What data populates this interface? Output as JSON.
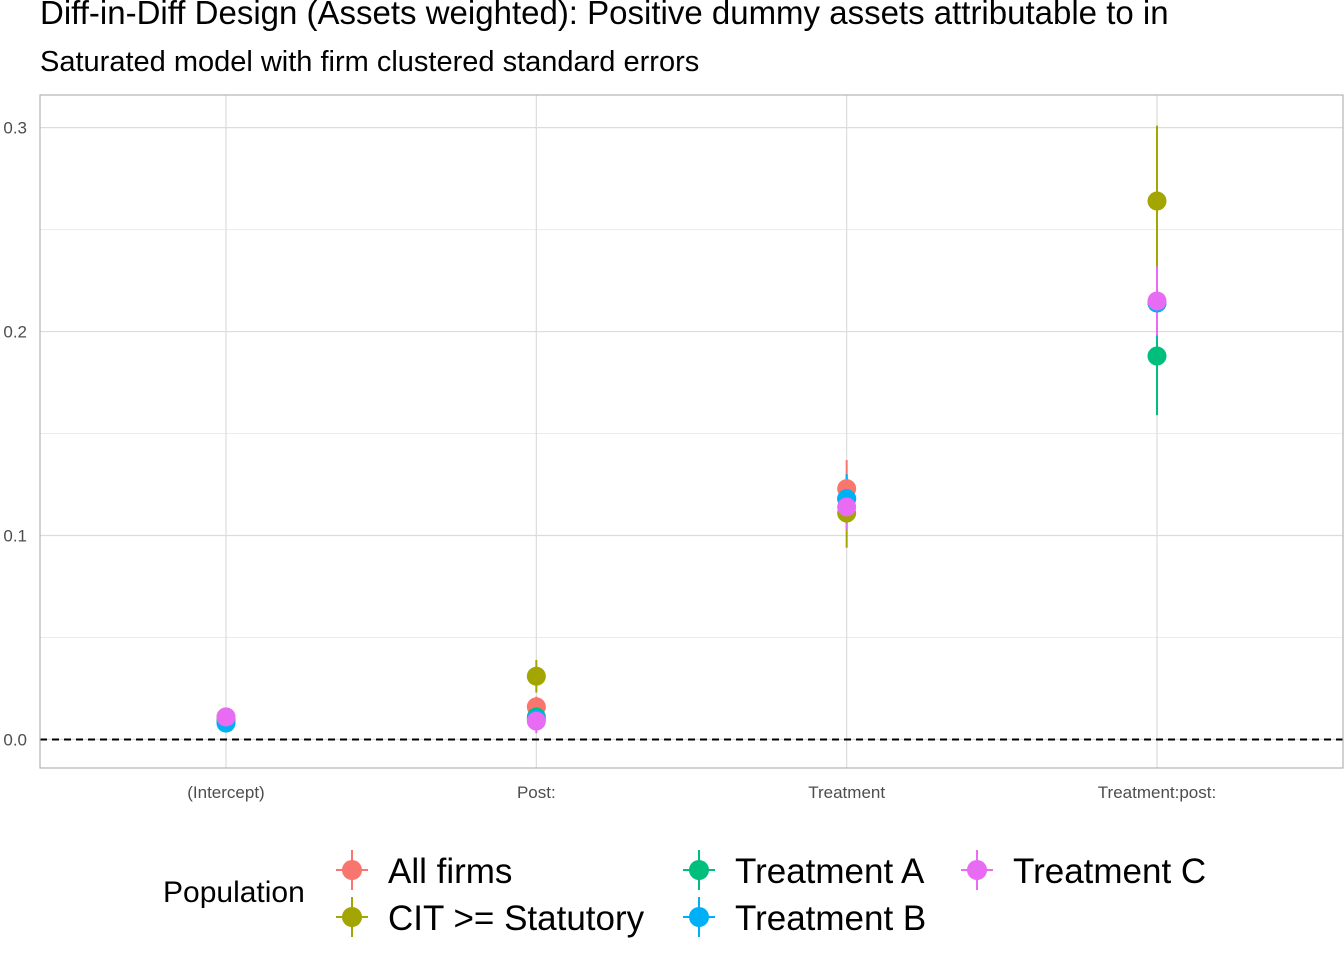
{
  "title": "Diff-in-Diff Design (Assets weighted): Positive dummy assets attributable to in",
  "subtitle": "Saturated model with firm clustered standard errors",
  "colors": {
    "All firms": "#F8766D",
    "CIT >= Statutory": "#A3A500",
    "Treatment A": "#00BF7D",
    "Treatment B": "#00B0F6",
    "Treatment C": "#E76BF3"
  },
  "legend": {
    "title": "Population",
    "items": [
      "All firms",
      "CIT >= Statutory",
      "Treatment A",
      "Treatment B",
      "Treatment C"
    ]
  },
  "chart_data": {
    "type": "scatter",
    "categories": [
      "(Intercept)",
      "Post:",
      "Treatment",
      "Treatment:post:"
    ],
    "y_ticks": [
      "0.0",
      "0.1",
      "0.2",
      "0.3"
    ],
    "ylim": [
      -0.014,
      0.316
    ],
    "reference_line": 0,
    "grid": true,
    "legend_position": "bottom",
    "series": [
      {
        "name": "All firms",
        "estimates": [
          0.011,
          0.016,
          0.123,
          0.214
        ],
        "ci_low": [
          0.009,
          0.012,
          0.109,
          0.195
        ],
        "ci_high": [
          0.013,
          0.021,
          0.137,
          0.233
        ]
      },
      {
        "name": "CIT >= Statutory",
        "estimates": [
          0.01,
          0.031,
          0.111,
          0.264
        ],
        "ci_low": [
          0.008,
          0.023,
          0.094,
          0.226
        ],
        "ci_high": [
          0.012,
          0.039,
          0.128,
          0.301
        ]
      },
      {
        "name": "Treatment A",
        "estimates": [
          0.009,
          0.011,
          0.118,
          0.188
        ],
        "ci_low": [
          0.007,
          0.005,
          0.106,
          0.159
        ],
        "ci_high": [
          0.011,
          0.017,
          0.13,
          0.217
        ]
      },
      {
        "name": "Treatment B",
        "estimates": [
          0.008,
          0.01,
          0.118,
          0.214
        ],
        "ci_low": [
          0.006,
          0.004,
          0.106,
          0.197
        ],
        "ci_high": [
          0.01,
          0.016,
          0.13,
          0.231
        ]
      },
      {
        "name": "Treatment C",
        "estimates": [
          0.011,
          0.009,
          0.114,
          0.215
        ],
        "ci_low": [
          0.009,
          0.003,
          0.103,
          0.198
        ],
        "ci_high": [
          0.013,
          0.015,
          0.125,
          0.232
        ]
      }
    ]
  }
}
